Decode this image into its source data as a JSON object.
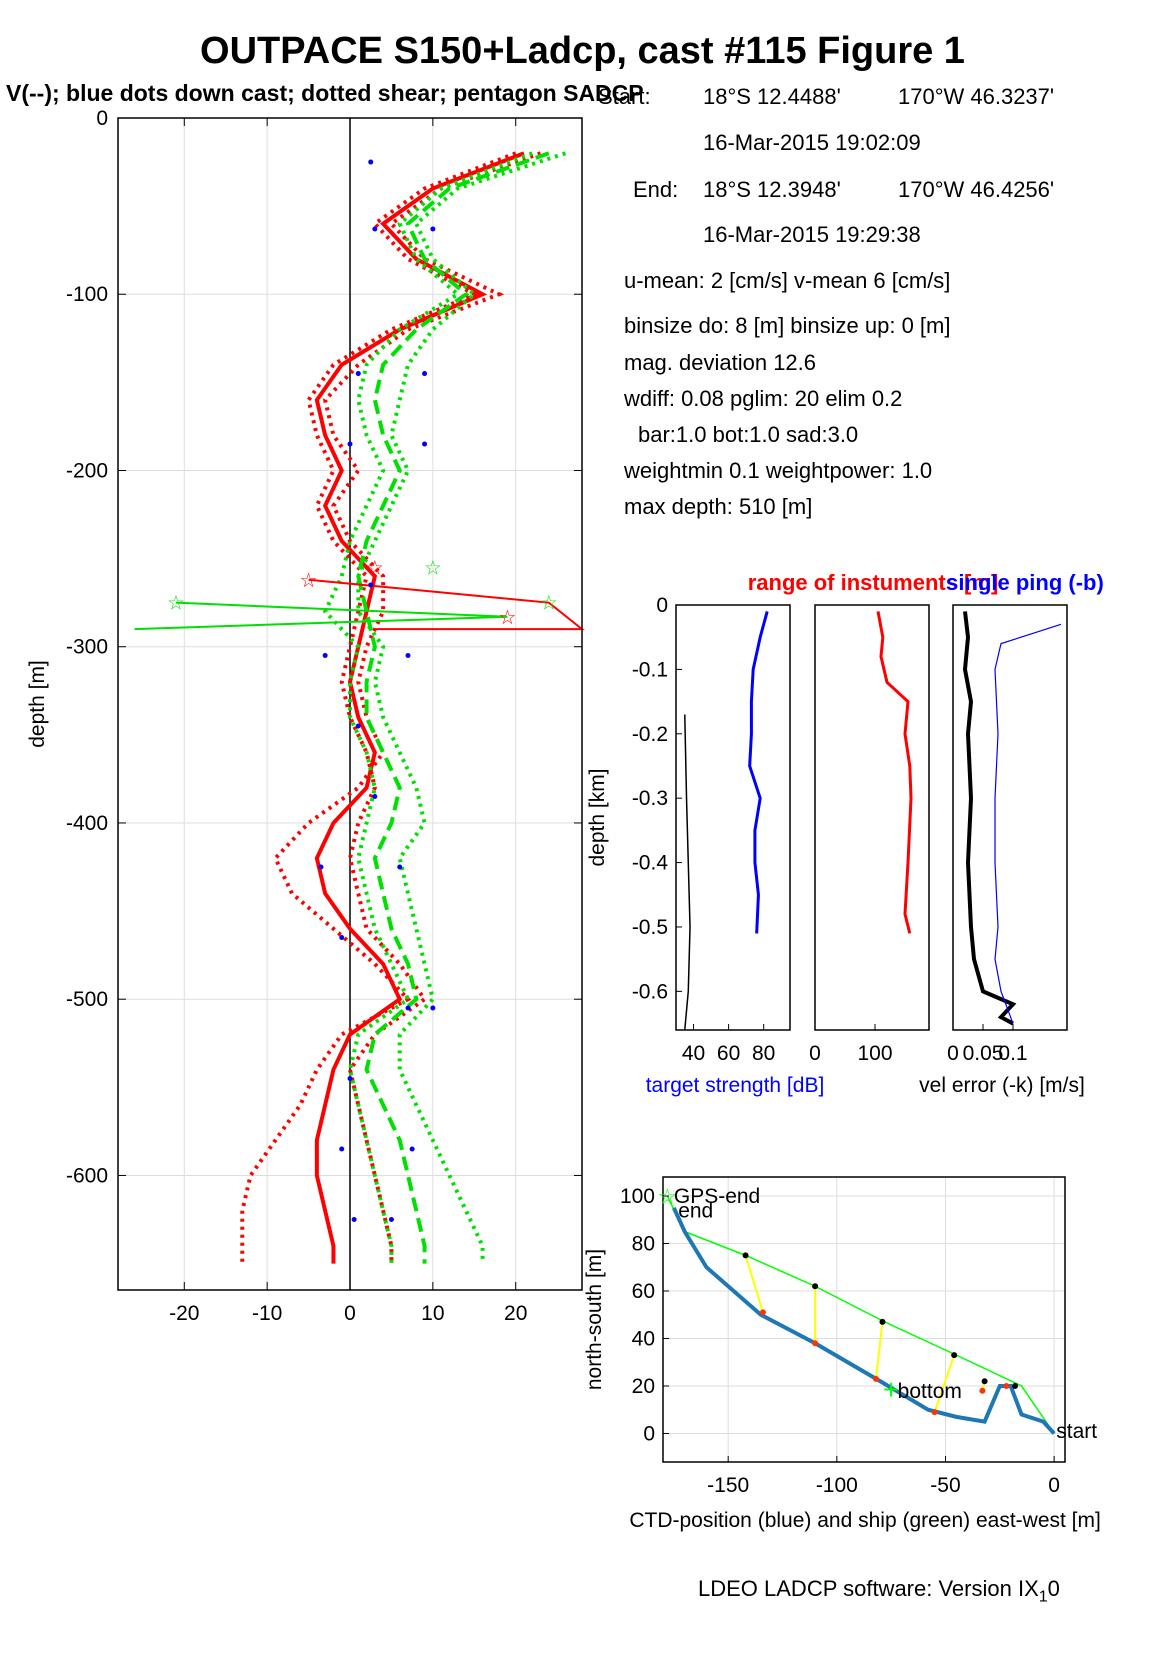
{
  "figure": {
    "title": "OUTPACE S150+Ladcp, cast #115  Figure 1",
    "subtitle": "V(--); blue dots down cast; dotted shear; pentagon SADCP",
    "footer": "LDEO LADCP software: Version IX",
    "footer_sub": "1",
    "footer_tail": "0"
  },
  "info": {
    "start_label": "Start:",
    "start_lat": "18°S 12.4488'",
    "start_lon": "170°W 46.3237'",
    "start_time": "16-Mar-2015 19:02:09",
    "end_label": "End:",
    "end_lat": "18°S 12.3948'",
    "end_lon": "170°W 46.4256'",
    "end_time": "16-Mar-2015 19:29:38",
    "means": "u-mean:   2 [cm/s]    v-mean   6 [cm/s]",
    "binsize": "binsize do: 8 [m]  binsize up:  0 [m]",
    "magdev": "mag. deviation 12.6",
    "wdiff": "wdiff: 0.08  pglim: 20  elim 0.2",
    "bar": "bar:1.0 bot:1.0 sad:3.0",
    "weight": "weightmin 0.1  weightpower: 1.0",
    "maxdepth": "max depth: 510 [m]"
  },
  "colors": {
    "u_profile": "#ff0000",
    "v_profile": "#00e000",
    "target_strength": "#0000ff",
    "range": "#ff0000",
    "vel_error": "#000000",
    "single_ping": "#0000ff",
    "ctd_track": "#1f77b4",
    "ship_track": "#00ff00",
    "connectors": "#ffff00"
  },
  "chart_data": [
    {
      "id": "velocity",
      "type": "line",
      "ylabel": "depth [m]",
      "xlabel": "",
      "xlim": [
        -28,
        28
      ],
      "ylim": [
        -665,
        0
      ],
      "xticks": [
        "-20",
        "-10",
        "0",
        "10",
        "20"
      ],
      "yticks": [
        "0",
        "-100",
        "-200",
        "-300",
        "-400",
        "-500",
        "-600"
      ],
      "grid": true,
      "depth": [
        -20,
        -40,
        -60,
        -80,
        -100,
        -120,
        -140,
        -160,
        -180,
        -200,
        -220,
        -240,
        -260,
        -280,
        -300,
        -320,
        -340,
        -360,
        -380,
        -400,
        -420,
        -440,
        -460,
        -480,
        -500,
        -520,
        -540,
        -560,
        -580,
        -600,
        -620,
        -640,
        -650
      ],
      "series": [
        {
          "color": "#ff0000",
          "style": "solid",
          "values": [
            21,
            10,
            4,
            8,
            16,
            6,
            -1,
            -4,
            -3,
            -1,
            -3,
            -1,
            3,
            2,
            1,
            0,
            1,
            3,
            2,
            -2,
            -4,
            -3,
            0,
            4,
            6,
            0,
            -2,
            -3,
            -4,
            -4,
            -3,
            -2,
            -2
          ]
        },
        {
          "color": "#ff0000",
          "style": "dotted",
          "values": [
            23,
            11,
            5,
            9,
            18,
            7,
            1,
            -3,
            -2,
            1,
            -2,
            0,
            4,
            4,
            2,
            1,
            2,
            4,
            1,
            -5,
            -9,
            -7,
            -2,
            3,
            7,
            -1,
            -4,
            -6,
            -9,
            -12,
            -13,
            -13,
            -13
          ]
        },
        {
          "color": "#ff0000",
          "style": "dotted",
          "values": [
            20,
            9,
            3,
            7,
            15,
            5,
            -2,
            -5,
            -4,
            -2,
            -4,
            -2,
            2,
            1,
            0,
            -1,
            0,
            2,
            3,
            1,
            0,
            1,
            2,
            6,
            9,
            3,
            0,
            1,
            2,
            3,
            4,
            5,
            5
          ]
        },
        {
          "color": "#00e000",
          "style": "dashed",
          "values": [
            24,
            12,
            7,
            9,
            14,
            8,
            4,
            3,
            4,
            6,
            4,
            2,
            1,
            2,
            3,
            2,
            2,
            4,
            6,
            5,
            3,
            4,
            5,
            7,
            8,
            3,
            2,
            4,
            6,
            7,
            8,
            9,
            9
          ]
        },
        {
          "color": "#00e000",
          "style": "dotted",
          "values": [
            26,
            13,
            8,
            10,
            15,
            10,
            7,
            6,
            5,
            7,
            5,
            3,
            1,
            1,
            4,
            3,
            4,
            6,
            8,
            9,
            6,
            7,
            8,
            9,
            10,
            6,
            6,
            8,
            10,
            12,
            14,
            16,
            16
          ]
        },
        {
          "color": "#00e000",
          "style": "dotted",
          "values": [
            22,
            11,
            6,
            8,
            13,
            6,
            2,
            1,
            2,
            4,
            2,
            0,
            -1,
            -3,
            1,
            0,
            0,
            2,
            3,
            2,
            1,
            2,
            3,
            5,
            7,
            1,
            0,
            1,
            2,
            3,
            4,
            5,
            5
          ]
        }
      ],
      "down_cast_dots": [
        [
          2.5,
          -25
        ],
        [
          3,
          -63
        ],
        [
          10,
          -63
        ],
        [
          1,
          -145
        ],
        [
          9,
          -145
        ],
        [
          0,
          -185
        ],
        [
          9,
          -185
        ],
        [
          2.5,
          -265
        ],
        [
          -3,
          -305
        ],
        [
          7,
          -305
        ],
        [
          1,
          -345
        ],
        [
          3,
          -385
        ],
        [
          -3.5,
          -425
        ],
        [
          6,
          -425
        ],
        [
          -1,
          -465
        ],
        [
          7,
          -505
        ],
        [
          10,
          -505
        ],
        [
          0,
          -545
        ],
        [
          -1,
          -585
        ],
        [
          7.5,
          -585
        ],
        [
          0.5,
          -625
        ],
        [
          5,
          -625
        ]
      ],
      "sadcp_stars": [
        [
          -21,
          -275
        ],
        [
          19,
          -283
        ],
        [
          24,
          -275
        ],
        [
          3,
          -255
        ],
        [
          10,
          -255
        ],
        [
          -5,
          -262
        ]
      ]
    },
    {
      "id": "target-strength",
      "type": "line",
      "xlabel": "target strength [dB]",
      "ylabel": "depth [km]",
      "xlim": [
        30,
        95
      ],
      "ylim": [
        -0.66,
        0
      ],
      "xticks": [
        "40",
        "60",
        "80"
      ],
      "yticks": [
        "0",
        "-0.1",
        "-0.2",
        "-0.3",
        "-0.4",
        "-0.5",
        "-0.6"
      ],
      "series": [
        {
          "color": "#0000ff",
          "depth": [
            -0.01,
            -0.05,
            -0.1,
            -0.15,
            -0.2,
            -0.25,
            -0.3,
            -0.35,
            -0.4,
            -0.45,
            -0.51
          ],
          "values": [
            82,
            78,
            74,
            73,
            73,
            72,
            78,
            75,
            75,
            77,
            76
          ]
        },
        {
          "color": "#000000",
          "depth": [
            -0.17,
            -0.3,
            -0.4,
            -0.5,
            -0.6,
            -0.66
          ],
          "values": [
            35,
            36,
            37,
            38,
            37,
            35
          ]
        }
      ]
    },
    {
      "id": "range",
      "type": "line",
      "xlabel": "",
      "ylabel": "",
      "title": "range of instuments [m]",
      "xlim": [
        0,
        190
      ],
      "ylim": [
        -0.66,
        0
      ],
      "xticks": [
        "0",
        "100"
      ],
      "series": [
        {
          "color": "#ff0000",
          "depth": [
            -0.01,
            -0.05,
            -0.08,
            -0.12,
            -0.15,
            -0.2,
            -0.25,
            -0.3,
            -0.4,
            -0.48,
            -0.51
          ],
          "values": [
            105,
            113,
            110,
            120,
            155,
            150,
            158,
            160,
            155,
            150,
            158
          ]
        }
      ]
    },
    {
      "id": "vel-error",
      "type": "line",
      "xlabel": "vel error (-k) [m/s]",
      "title": "single ping (-b)",
      "xlim": [
        0,
        0.19
      ],
      "ylim": [
        -0.66,
        0
      ],
      "xticks": [
        "0",
        "0.05",
        "0.1"
      ],
      "series": [
        {
          "color": "#000000",
          "depth": [
            -0.01,
            -0.05,
            -0.1,
            -0.15,
            -0.2,
            -0.3,
            -0.4,
            -0.5,
            -0.55,
            -0.6,
            -0.62,
            -0.64,
            -0.65
          ],
          "values": [
            0.02,
            0.025,
            0.02,
            0.03,
            0.025,
            0.03,
            0.025,
            0.03,
            0.035,
            0.05,
            0.1,
            0.08,
            0.1
          ]
        },
        {
          "color": "#0000ff",
          "depth": [
            -0.03,
            -0.06,
            -0.1,
            -0.2,
            -0.3,
            -0.4,
            -0.5,
            -0.55,
            -0.6,
            -0.65
          ],
          "values": [
            0.18,
            0.08,
            0.07,
            0.075,
            0.07,
            0.07,
            0.075,
            0.07,
            0.08,
            0.1
          ]
        }
      ]
    },
    {
      "id": "track",
      "type": "line",
      "xlabel": "CTD-position (blue) and ship (green) east-west [m]",
      "ylabel": "north-south [m]",
      "xlim": [
        -180,
        5
      ],
      "ylim": [
        -12,
        108
      ],
      "xticks": [
        "-150",
        "-100",
        "-50",
        "0"
      ],
      "yticks": [
        "100",
        "80",
        "60",
        "40",
        "20",
        "0"
      ],
      "grid": true,
      "labels": {
        "gps_end": "GPS-end",
        "end": "end",
        "bottom": "bottom",
        "start": "start"
      },
      "ctd_track": [
        [
          0,
          0
        ],
        [
          -5,
          5
        ],
        [
          -15,
          8
        ],
        [
          -20,
          20
        ],
        [
          -25,
          20
        ],
        [
          -32,
          5
        ],
        [
          -45,
          7
        ],
        [
          -58,
          10
        ],
        [
          -80,
          22
        ],
        [
          -110,
          38
        ],
        [
          -135,
          50
        ],
        [
          -160,
          70
        ],
        [
          -170,
          85
        ],
        [
          -175,
          95
        ]
      ],
      "ship_track": [
        [
          0,
          0
        ],
        [
          -15,
          20
        ],
        [
          -45,
          33
        ],
        [
          -78,
          47
        ],
        [
          -110,
          62
        ],
        [
          -142,
          75
        ],
        [
          -170,
          85
        ],
        [
          -178,
          100
        ]
      ],
      "connectors": [
        [
          [
            -18,
            20
          ],
          [
            -22,
            20
          ]
        ],
        [
          [
            -32,
            22
          ],
          [
            -33,
            18
          ]
        ],
        [
          [
            -46,
            33
          ],
          [
            -55,
            9
          ]
        ],
        [
          [
            -79,
            47
          ],
          [
            -82,
            23
          ]
        ],
        [
          [
            -110,
            62
          ],
          [
            -110,
            38
          ]
        ],
        [
          [
            -142,
            75
          ],
          [
            -134,
            51
          ]
        ]
      ]
    }
  ]
}
